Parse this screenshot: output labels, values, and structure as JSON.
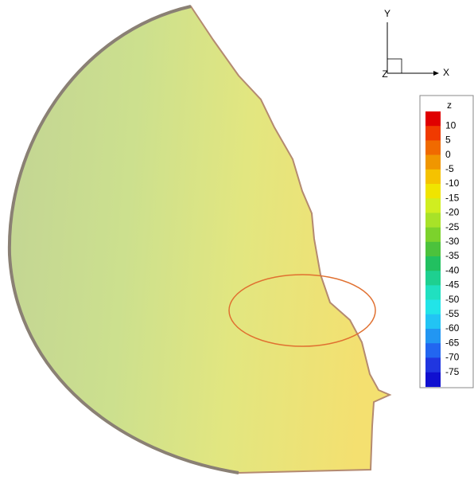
{
  "axes_triad": {
    "y_label": "Y",
    "x_label": "X",
    "z_label": "Z"
  },
  "legend": {
    "title": "z",
    "levels": [
      10,
      5,
      0,
      -5,
      -10,
      -15,
      -20,
      -25,
      -30,
      -35,
      -40,
      -45,
      -50,
      -55,
      -60,
      -65,
      -70,
      -75
    ],
    "colors": [
      "#e00000",
      "#f03a00",
      "#f06a00",
      "#f09600",
      "#f5c200",
      "#f0e400",
      "#d0ee20",
      "#a8e228",
      "#7cd22c",
      "#4cc23c",
      "#22c060",
      "#1ed090",
      "#20e0c0",
      "#22e4e8",
      "#22c4f4",
      "#2296f2",
      "#2266f0",
      "#2036e0",
      "#1010d0"
    ]
  }
}
